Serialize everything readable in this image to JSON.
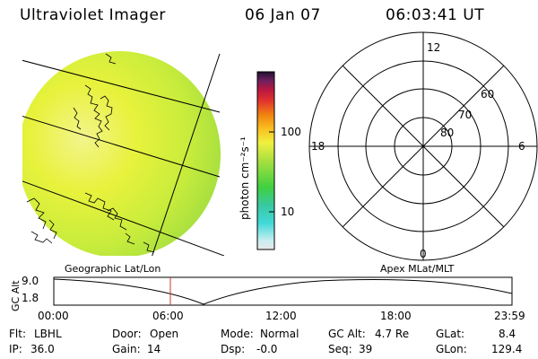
{
  "header": {
    "title": "Ultraviolet Imager",
    "date": "06 Jan 07",
    "time": "06:03:41 UT"
  },
  "colorbar": {
    "unit_label": "photon cm⁻²s⁻¹",
    "ticks": [
      "100",
      "10"
    ]
  },
  "polar": {
    "mlt_labels": {
      "top": "12",
      "left": "18",
      "right": "6",
      "bottom": "0"
    },
    "lat_labels": [
      "60",
      "70",
      "80"
    ]
  },
  "panels": {
    "left_caption": "Geographic Lat/Lon",
    "right_caption": "Apex MLat/MLT"
  },
  "altitude_plot": {
    "ylabel": "GC Alt",
    "yticks": [
      "9.0",
      "1.8"
    ],
    "xticks": [
      "00:00",
      "06:00",
      "12:00",
      "18:00",
      "23:59"
    ]
  },
  "info": {
    "flt_label": "Flt:",
    "flt_value": "LBHL",
    "ip_label": "IP:",
    "ip_value": "36.0",
    "door_label": "Door:",
    "door_value": "Open",
    "gain_label": "Gain:",
    "gain_value": "14",
    "mode_label": "Mode:",
    "mode_value": "Normal",
    "dsp_label": "Dsp:",
    "dsp_value": "-0.0",
    "gcalt_label": "GC Alt:",
    "gcalt_value": "4.7 Re",
    "seq_label": "Seq:",
    "seq_value": "39",
    "glat_label": "GLat:",
    "glat_value": "8.4",
    "glon_label": "GLon:",
    "glon_value": "129.4"
  },
  "colors": {
    "image_yellow": "#e6f03c",
    "image_green": "#b4e640",
    "marker": "#c0392b"
  }
}
